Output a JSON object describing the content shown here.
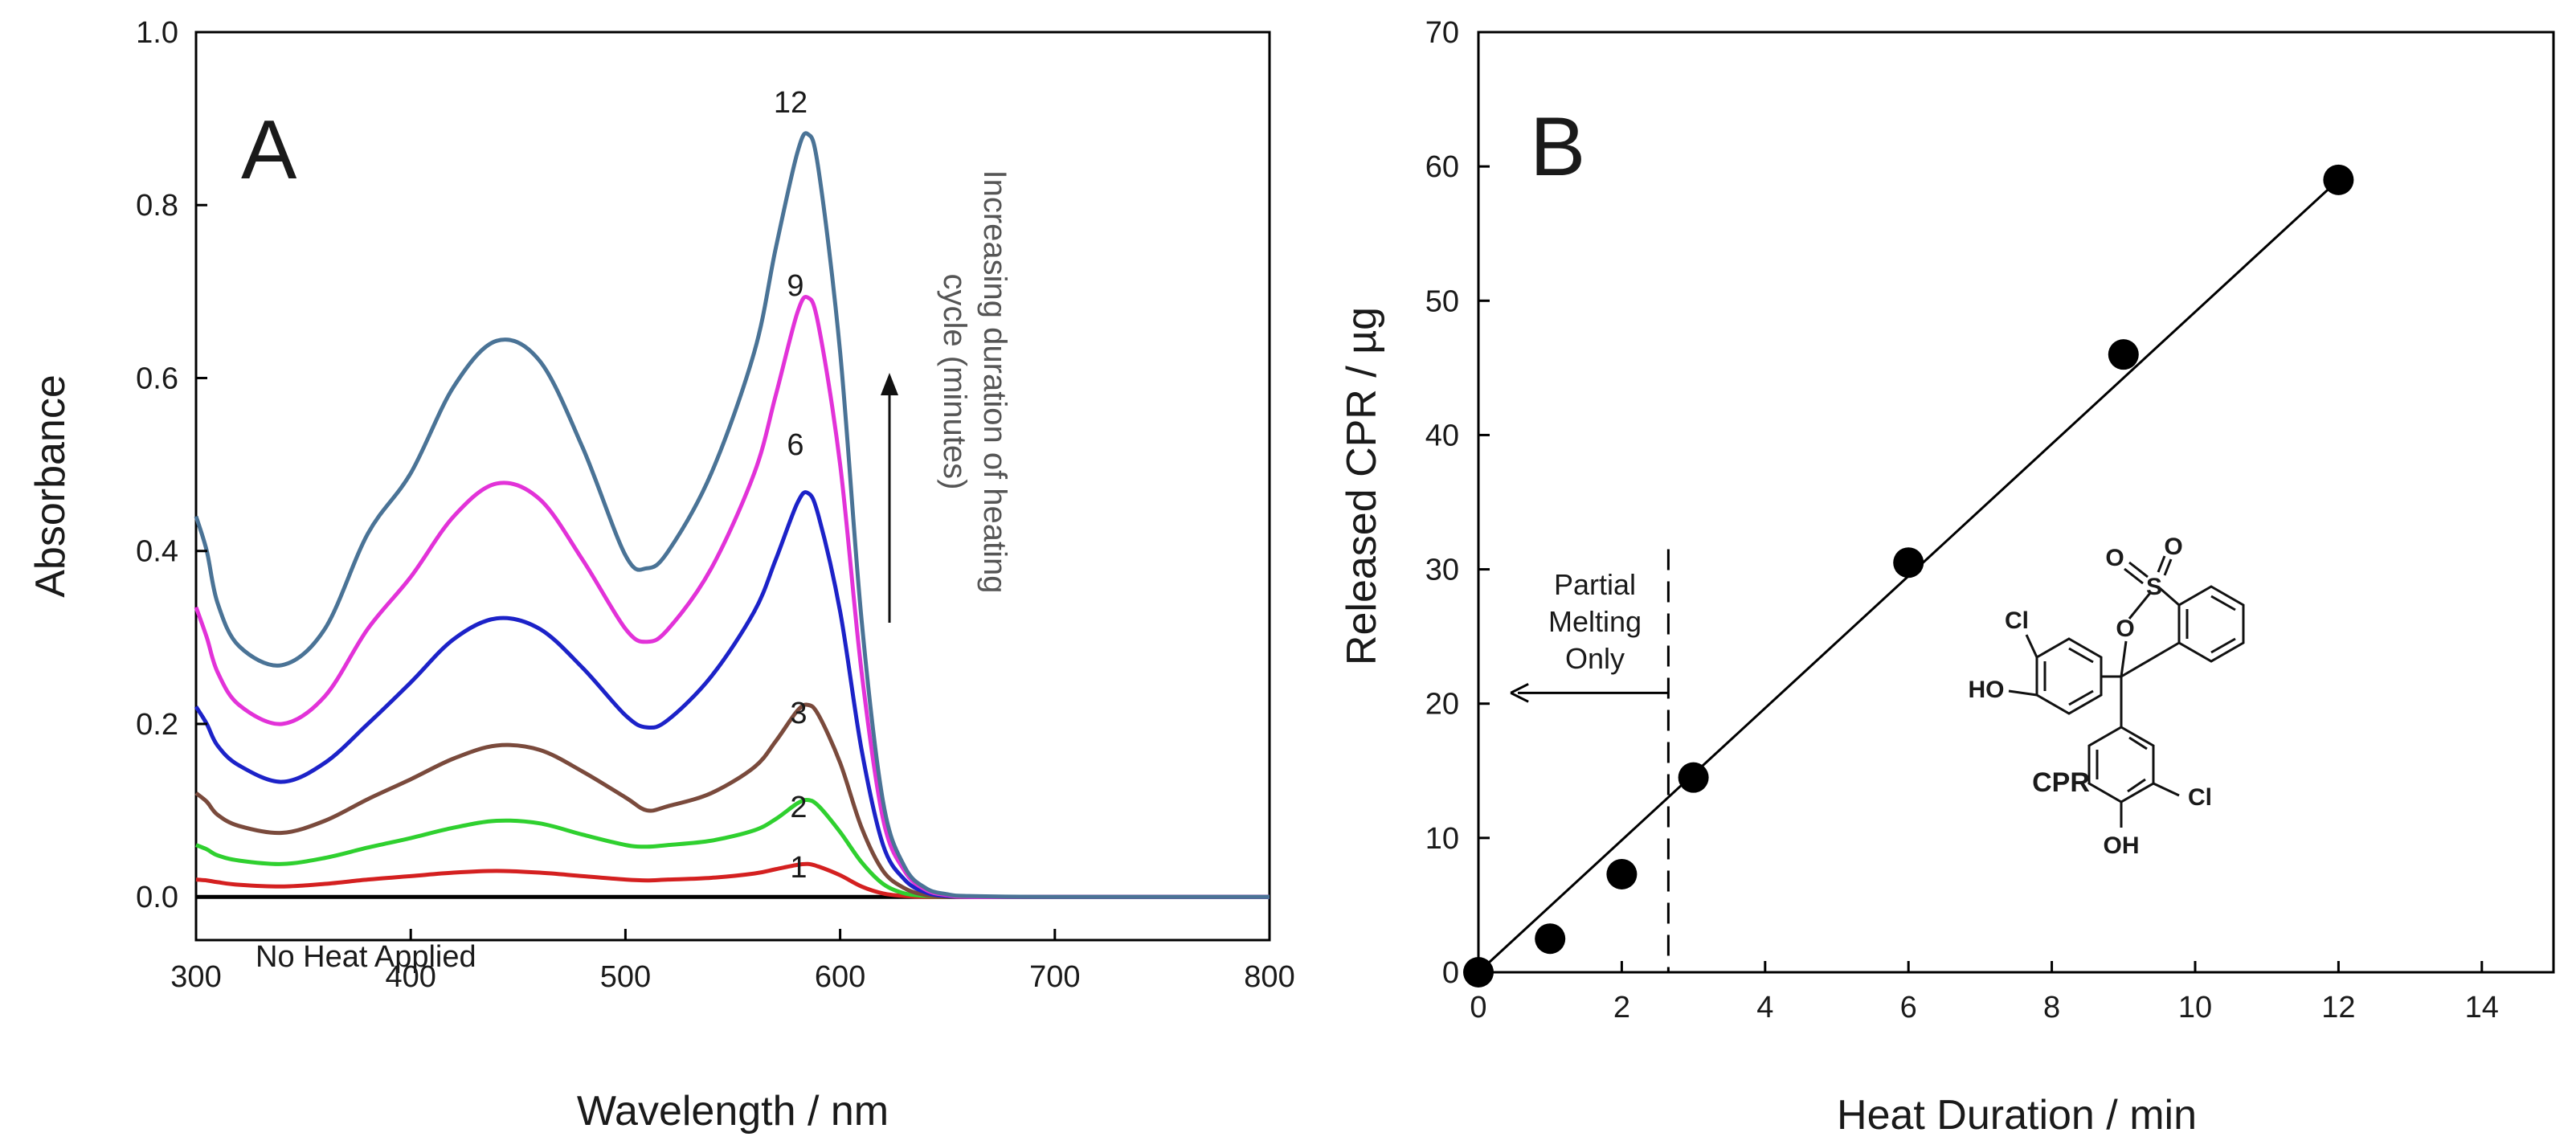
{
  "chart_data": [
    {
      "type": "line",
      "panel_label": "A",
      "xlabel": "Wavelength / nm",
      "ylabel": "Absorbance",
      "xlim": [
        300,
        800
      ],
      "ylim": [
        -0.05,
        1.0
      ],
      "xticks": [
        300,
        400,
        500,
        600,
        700,
        800
      ],
      "xtick_labels": [
        "300",
        "400",
        "500",
        "600",
        "700",
        "800"
      ],
      "yticks": [
        0.0,
        0.2,
        0.4,
        0.6,
        0.8,
        1.0
      ],
      "ytick_labels": [
        "0.0",
        "0.2",
        "0.4",
        "0.6",
        "0.8",
        "1.0"
      ],
      "annotation": "Increasing duration of heating cycle (minutes)",
      "annotation_lines": [
        "Increasing duration of heating",
        "cycle (minutes)"
      ],
      "x": [
        300,
        305,
        310,
        320,
        340,
        360,
        380,
        400,
        420,
        440,
        460,
        480,
        500,
        510,
        520,
        540,
        560,
        570,
        580,
        585,
        590,
        600,
        610,
        620,
        630,
        640,
        650,
        660,
        700,
        800
      ],
      "series": [
        {
          "name": "No Heat Applied",
          "label": "No Heat Applied",
          "color": "#000000",
          "values": [
            0,
            0,
            0,
            0,
            0,
            0,
            0,
            0,
            0,
            0,
            0,
            0,
            0,
            0,
            0,
            0,
            0,
            0,
            0,
            0,
            0,
            0,
            0,
            0,
            0,
            0,
            0,
            0,
            0,
            0
          ]
        },
        {
          "name": "1",
          "label": "1",
          "color": "#d42020",
          "values": [
            0.02,
            0.019,
            0.017,
            0.014,
            0.012,
            0.015,
            0.02,
            0.024,
            0.028,
            0.03,
            0.028,
            0.024,
            0.02,
            0.019,
            0.02,
            0.022,
            0.027,
            0.032,
            0.037,
            0.038,
            0.035,
            0.025,
            0.012,
            0.004,
            0.001,
            0,
            0,
            0,
            0,
            0
          ]
        },
        {
          "name": "2",
          "label": "2",
          "color": "#2fd02f",
          "values": [
            0.06,
            0.055,
            0.048,
            0.042,
            0.038,
            0.045,
            0.057,
            0.068,
            0.08,
            0.088,
            0.085,
            0.072,
            0.06,
            0.058,
            0.06,
            0.065,
            0.077,
            0.09,
            0.108,
            0.112,
            0.105,
            0.075,
            0.04,
            0.015,
            0.004,
            0.001,
            0,
            0,
            0,
            0
          ]
        },
        {
          "name": "3",
          "label": "3",
          "color": "#7a4a3c",
          "values": [
            0.12,
            0.11,
            0.095,
            0.082,
            0.074,
            0.088,
            0.113,
            0.136,
            0.16,
            0.175,
            0.17,
            0.145,
            0.115,
            0.1,
            0.105,
            0.12,
            0.15,
            0.18,
            0.215,
            0.222,
            0.21,
            0.155,
            0.08,
            0.03,
            0.01,
            0.002,
            0,
            0,
            0,
            0
          ]
        },
        {
          "name": "6",
          "label": "6",
          "color": "#1c22c8",
          "values": [
            0.22,
            0.2,
            0.175,
            0.152,
            0.133,
            0.155,
            0.2,
            0.248,
            0.298,
            0.322,
            0.31,
            0.265,
            0.21,
            0.196,
            0.205,
            0.255,
            0.33,
            0.39,
            0.455,
            0.467,
            0.44,
            0.33,
            0.17,
            0.06,
            0.02,
            0.005,
            0.001,
            0,
            0,
            0
          ]
        },
        {
          "name": "9",
          "label": "9",
          "color": "#e232d8",
          "values": [
            0.335,
            0.3,
            0.26,
            0.222,
            0.2,
            0.232,
            0.31,
            0.37,
            0.44,
            0.478,
            0.46,
            0.39,
            0.31,
            0.295,
            0.31,
            0.38,
            0.49,
            0.58,
            0.675,
            0.693,
            0.66,
            0.5,
            0.26,
            0.09,
            0.03,
            0.008,
            0.002,
            0,
            0,
            0
          ]
        },
        {
          "name": "12",
          "label": "12",
          "color": "#4a7396",
          "values": [
            0.44,
            0.4,
            0.34,
            0.29,
            0.268,
            0.31,
            0.42,
            0.49,
            0.59,
            0.643,
            0.62,
            0.52,
            0.395,
            0.38,
            0.4,
            0.49,
            0.63,
            0.75,
            0.86,
            0.882,
            0.84,
            0.63,
            0.32,
            0.11,
            0.035,
            0.01,
            0.003,
            0.001,
            0,
            0
          ]
        }
      ]
    },
    {
      "type": "scatter",
      "panel_label": "B",
      "xlabel": "Heat Duration / min",
      "ylabel": "Released CPR / µg",
      "xlim": [
        0,
        15
      ],
      "ylim": [
        0,
        70
      ],
      "xticks": [
        0,
        2,
        4,
        6,
        8,
        10,
        12,
        14
      ],
      "xtick_labels": [
        "0",
        "2",
        "4",
        "6",
        "8",
        "10",
        "12",
        "14"
      ],
      "yticks": [
        0,
        10,
        20,
        30,
        40,
        50,
        60,
        70
      ],
      "ytick_labels": [
        "0",
        "10",
        "20",
        "30",
        "40",
        "50",
        "60",
        "70"
      ],
      "points": [
        {
          "x": 0,
          "y": 0
        },
        {
          "x": 1,
          "y": 2.5
        },
        {
          "x": 2,
          "y": 7.3
        },
        {
          "x": 3,
          "y": 14.5
        },
        {
          "x": 6,
          "y": 30.5
        },
        {
          "x": 9,
          "y": 46
        },
        {
          "x": 12,
          "y": 59
        }
      ],
      "fit_line": {
        "x": [
          0,
          12
        ],
        "y": [
          0,
          59
        ]
      },
      "partial_melting_x": 2.65,
      "annotation": "Partial Melting Only",
      "annotation_lines": [
        "Partial",
        "Melting",
        "Only"
      ],
      "arrow_y": 20.8,
      "compound_label": "CPR",
      "structure_atoms": [
        "O",
        "S",
        "O",
        "O",
        "Cl",
        "HO",
        "Cl",
        "OH"
      ]
    }
  ]
}
